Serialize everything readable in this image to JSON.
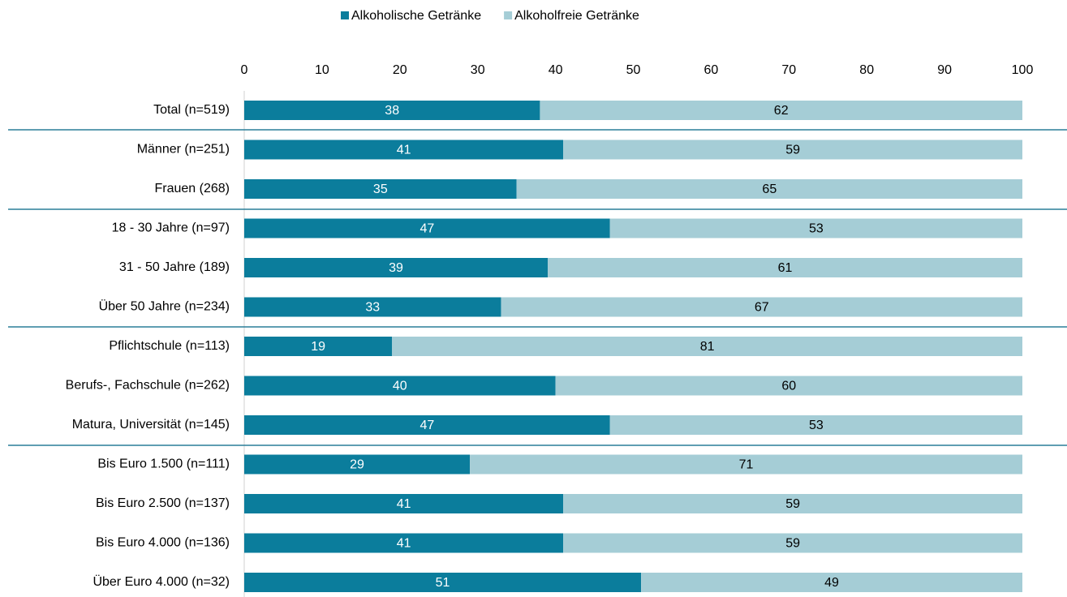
{
  "chart_data": {
    "type": "stacked_bar_horizontal",
    "categories": [
      "Total (n=519)",
      "Männer (n=251)",
      "Frauen (268)",
      "18 - 30 Jahre (n=97)",
      "31 - 50 Jahre (189)",
      "Über 50 Jahre (n=234)",
      "Pflichtschule (n=113)",
      "Berufs-, Fachschule (n=262)",
      "Matura, Universität (n=145)",
      "Bis Euro 1.500 (n=111)",
      "Bis Euro 2.500 (n=137)",
      "Bis Euro 4.000 (n=136)",
      "Über Euro 4.000 (n=32)"
    ],
    "series": [
      {
        "name": "Alkoholische Getränke",
        "color": "#0b7d9c",
        "values": [
          38,
          41,
          35,
          47,
          39,
          33,
          19,
          40,
          47,
          29,
          41,
          41,
          51
        ]
      },
      {
        "name": "Alkoholfreie Getränke",
        "color": "#a5cdd6",
        "values": [
          62,
          59,
          65,
          53,
          61,
          67,
          81,
          60,
          53,
          71,
          59,
          59,
          49
        ]
      }
    ],
    "xlim": [
      0,
      100
    ],
    "xticks": [
      0,
      10,
      20,
      30,
      40,
      50,
      60,
      70,
      80,
      90,
      100
    ],
    "legend": "top"
  }
}
